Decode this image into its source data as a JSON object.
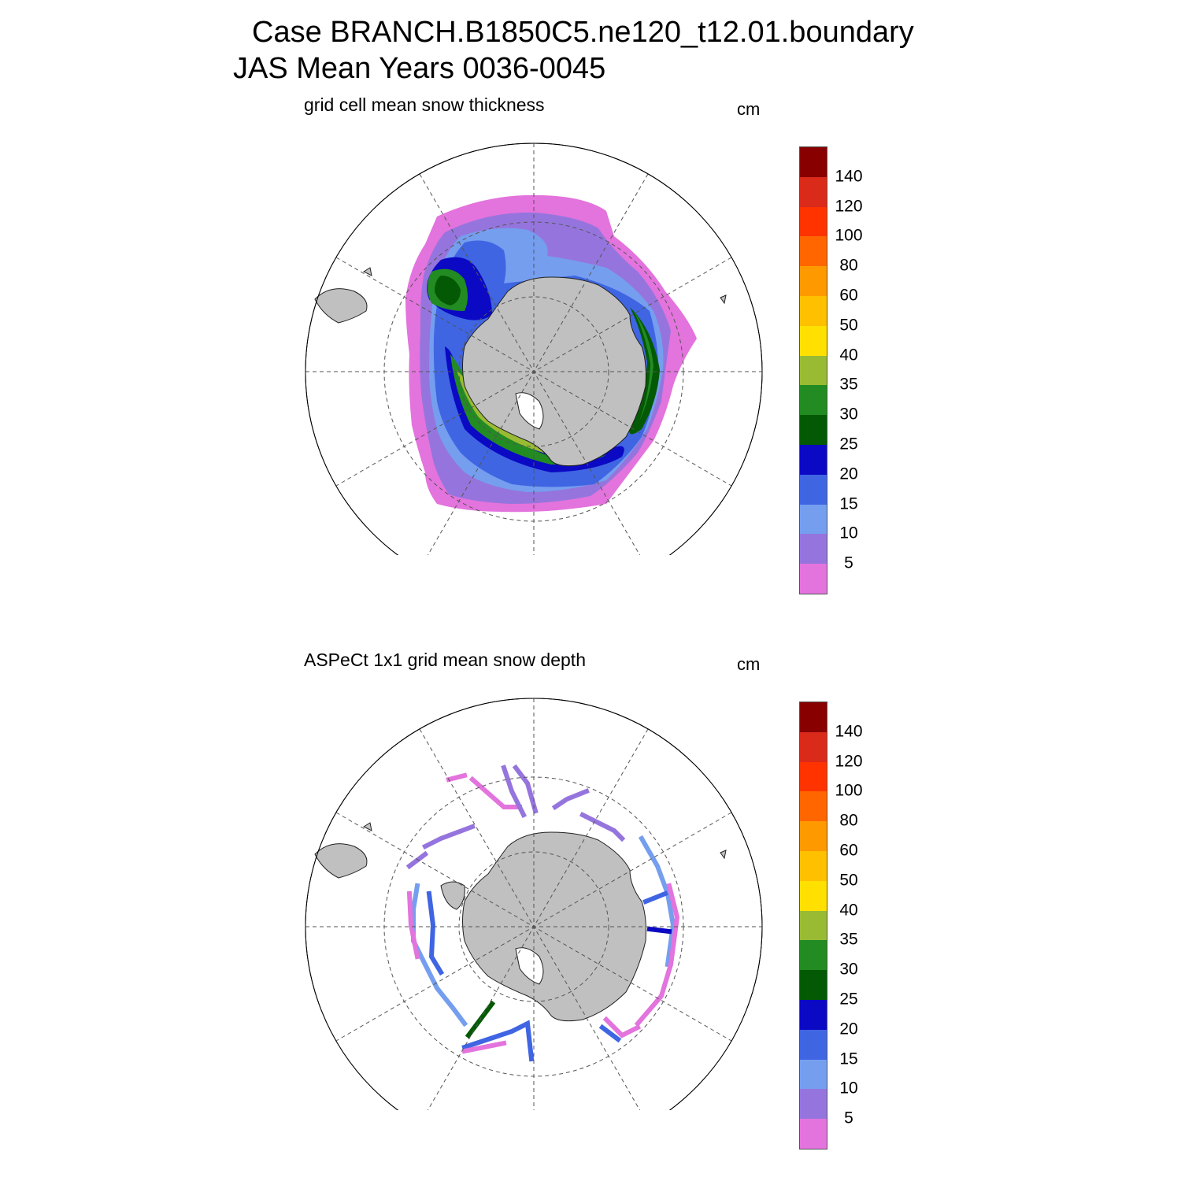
{
  "title": {
    "line1": "Case BRANCH.B1850C5.ne120_t12.01.boundary",
    "line2": "JAS Mean    Years 0036-0045"
  },
  "colorbar": {
    "colors": [
      "#e373dd",
      "#9575dd",
      "#759eef",
      "#3f65e3",
      "#0b09c3",
      "#045a04",
      "#228b22",
      "#99bb33",
      "#ffe000",
      "#ffc000",
      "#ff9900",
      "#ff6600",
      "#ff3300",
      "#d92a1a",
      "#880000"
    ],
    "labels": [
      "5",
      "10",
      "15",
      "20",
      "25",
      "30",
      "35",
      "40",
      "50",
      "60",
      "80",
      "100",
      "120",
      "140"
    ]
  },
  "panels": [
    {
      "title": "grid cell mean snow thickness",
      "unit": "cm"
    },
    {
      "title": "ASPeCt 1x1 grid mean snow depth",
      "unit": "cm"
    }
  ],
  "map_style": {
    "land_color": "#c0c0c0",
    "coast_color": "#202020",
    "grid_color": "#555555"
  }
}
